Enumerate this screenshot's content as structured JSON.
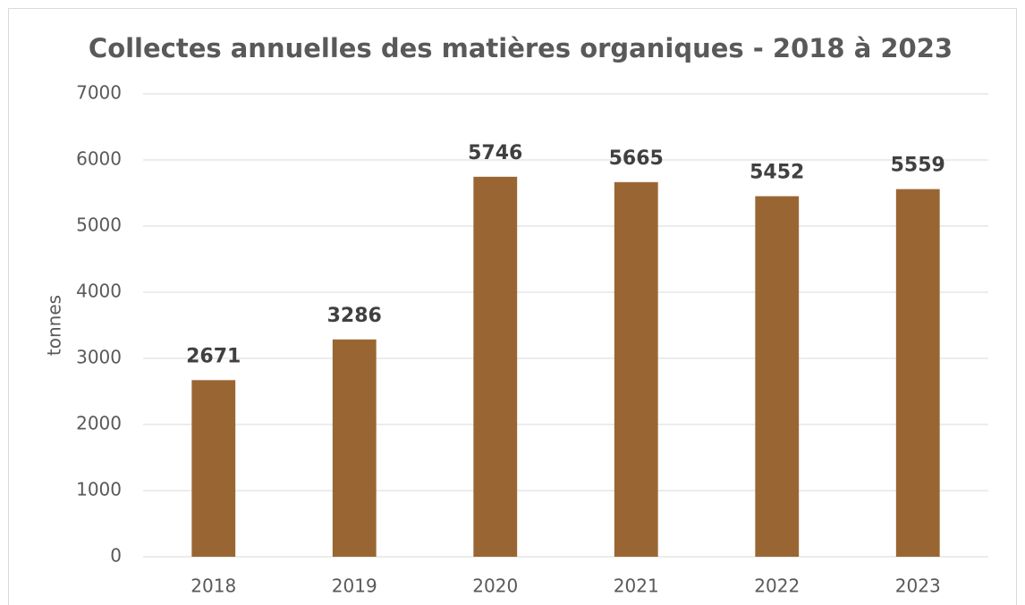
{
  "chart_data": {
    "type": "bar",
    "title": "Collectes annuelles des matières organiques - 2018 à 2023",
    "y_label": "tonnes",
    "categories": [
      "2018",
      "2019",
      "2020",
      "2021",
      "2022",
      "2023"
    ],
    "values": [
      2671,
      3286,
      5746,
      5665,
      5452,
      5559
    ],
    "color": "#996633",
    "ylim": [
      0,
      7000
    ],
    "yticks": [
      0,
      1000,
      2000,
      3000,
      4000,
      5000,
      6000,
      7000
    ],
    "grid": true
  }
}
